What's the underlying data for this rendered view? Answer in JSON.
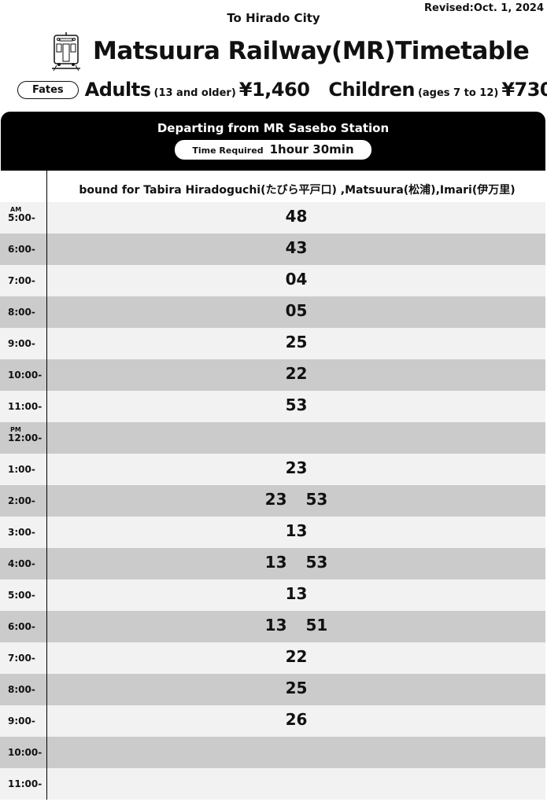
{
  "revised": "Revised:Oct. 1, 2024",
  "destination": "To Hirado City",
  "title": "Matsuura Railway(MR)Timetable",
  "fares": {
    "pill": "Fates",
    "adults": "Adults",
    "adults_note": "(13 and older)",
    "adults_price": "¥1,460",
    "children": "Children",
    "children_note": "(ages 7 to 12)",
    "children_price": "¥730"
  },
  "header": {
    "departing": "Departing from MR Sasebo Station",
    "time_label": "Time Required",
    "time_value": "1hour 30min"
  },
  "bound": "bound for Tabira Hiradoguchi(たびら平戸口) ,Matsuura(松浦),Imari(伊万里)",
  "rows": [
    {
      "ap": "AM",
      "hour": "5:00-",
      "mins": [
        "48"
      ]
    },
    {
      "hour": "6:00-",
      "mins": [
        "43"
      ]
    },
    {
      "hour": "7:00-",
      "mins": [
        "04"
      ]
    },
    {
      "hour": "8:00-",
      "mins": [
        "05"
      ]
    },
    {
      "hour": "9:00-",
      "mins": [
        "25"
      ]
    },
    {
      "hour": "10:00-",
      "mins": [
        "22"
      ]
    },
    {
      "hour": "11:00-",
      "mins": [
        "53"
      ]
    },
    {
      "ap": "PM",
      "hour": "12:00-",
      "mins": []
    },
    {
      "hour": "1:00-",
      "mins": [
        "23"
      ]
    },
    {
      "hour": "2:00-",
      "mins": [
        "23",
        "53"
      ]
    },
    {
      "hour": "3:00-",
      "mins": [
        "13"
      ]
    },
    {
      "hour": "4:00-",
      "mins": [
        "13",
        "53"
      ]
    },
    {
      "hour": "5:00-",
      "mins": [
        "13"
      ]
    },
    {
      "hour": "6:00-",
      "mins": [
        "13",
        "51"
      ]
    },
    {
      "hour": "7:00-",
      "mins": [
        "22"
      ]
    },
    {
      "hour": "8:00-",
      "mins": [
        "25"
      ]
    },
    {
      "hour": "9:00-",
      "mins": [
        "26"
      ]
    },
    {
      "hour": "10:00-",
      "mins": []
    },
    {
      "hour": "11:00-",
      "mins": []
    }
  ]
}
